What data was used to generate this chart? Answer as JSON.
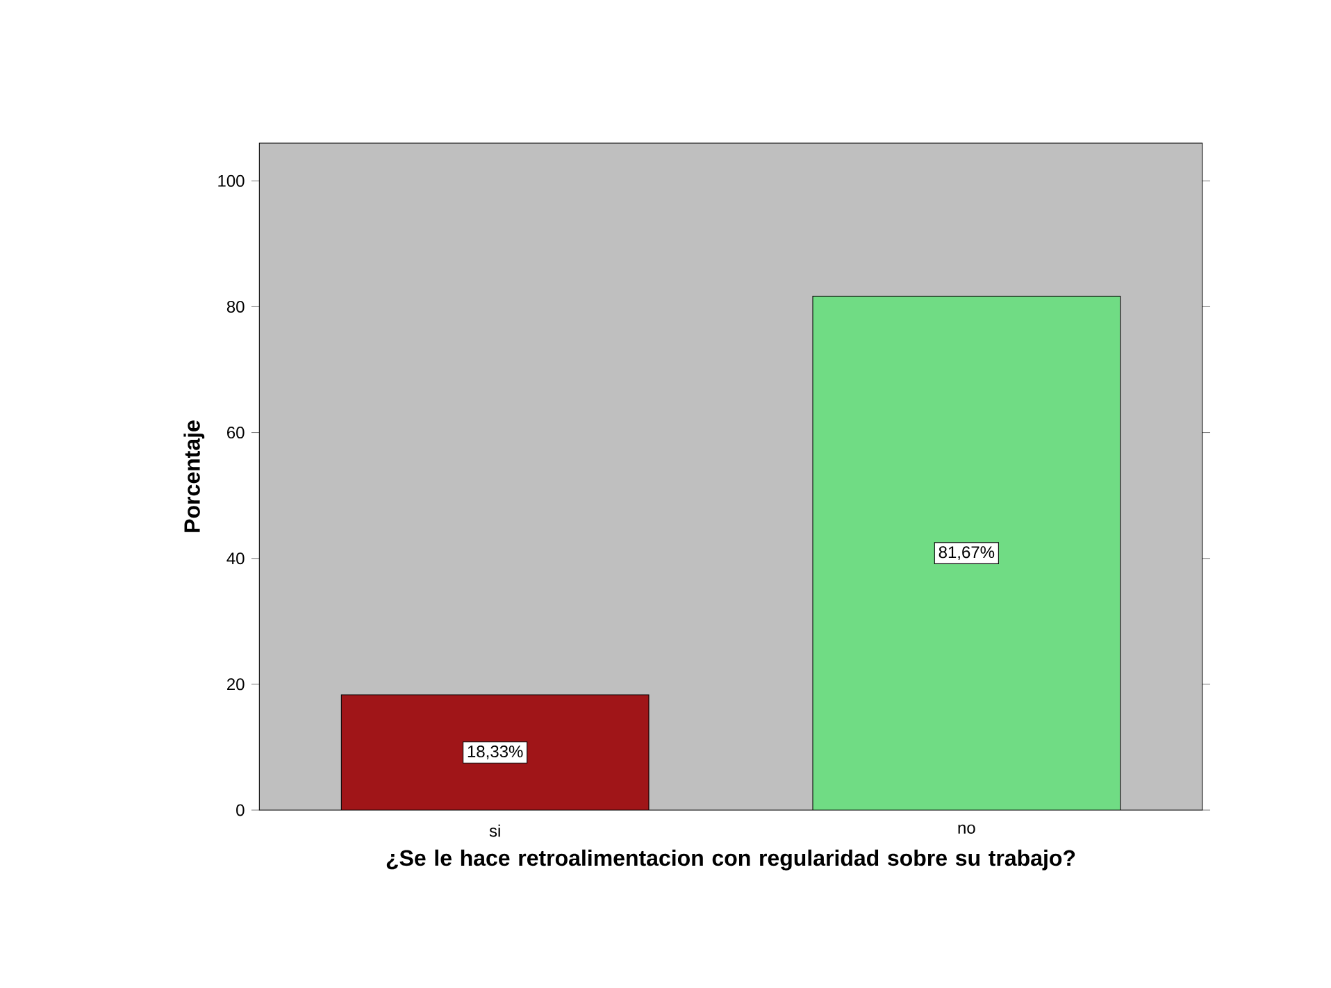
{
  "chart_data": {
    "type": "bar",
    "categories": [
      "si",
      "no"
    ],
    "values": [
      18.33,
      81.67
    ],
    "colors": [
      "#a01518",
      "#70dc84"
    ],
    "value_labels": [
      "18,33%",
      "81,67%"
    ],
    "ylim": [
      0,
      106
    ],
    "yticks": [
      0,
      20,
      40,
      60,
      80,
      100
    ],
    "ylabel": "Porcentaje",
    "xlabel": "¿Se le hace retroalimentacion con regularidad sobre su trabajo?",
    "grid": false
  }
}
